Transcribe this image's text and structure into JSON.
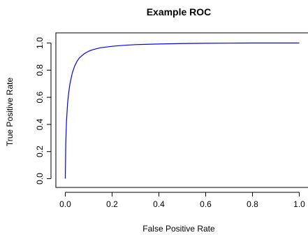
{
  "chart_data": {
    "type": "line",
    "title": "Example ROC",
    "xlabel": "False Positive Rate",
    "ylabel": "True Positive Rate",
    "xlim": [
      0.0,
      1.0
    ],
    "ylim": [
      0.0,
      1.0
    ],
    "xticks": [
      "0.0",
      "0.2",
      "0.4",
      "0.6",
      "0.8",
      "1.0"
    ],
    "yticks": [
      "0.0",
      "0.2",
      "0.4",
      "0.6",
      "0.8",
      "1.0"
    ],
    "grid": false,
    "series": [
      {
        "color": "#0000ff",
        "x": [
          0.0,
          0.002,
          0.005,
          0.01,
          0.015,
          0.02,
          0.03,
          0.04,
          0.05,
          0.06,
          0.07,
          0.08,
          0.1,
          0.12,
          0.15,
          0.2,
          0.25,
          0.3,
          0.4,
          0.5,
          0.6,
          0.7,
          0.8,
          0.9,
          1.0
        ],
        "y": [
          0.0,
          0.26,
          0.42,
          0.56,
          0.64,
          0.7,
          0.78,
          0.83,
          0.865,
          0.89,
          0.905,
          0.92,
          0.94,
          0.952,
          0.965,
          0.976,
          0.983,
          0.988,
          0.993,
          0.996,
          0.998,
          0.999,
          1.0,
          1.0,
          1.0
        ]
      }
    ]
  }
}
